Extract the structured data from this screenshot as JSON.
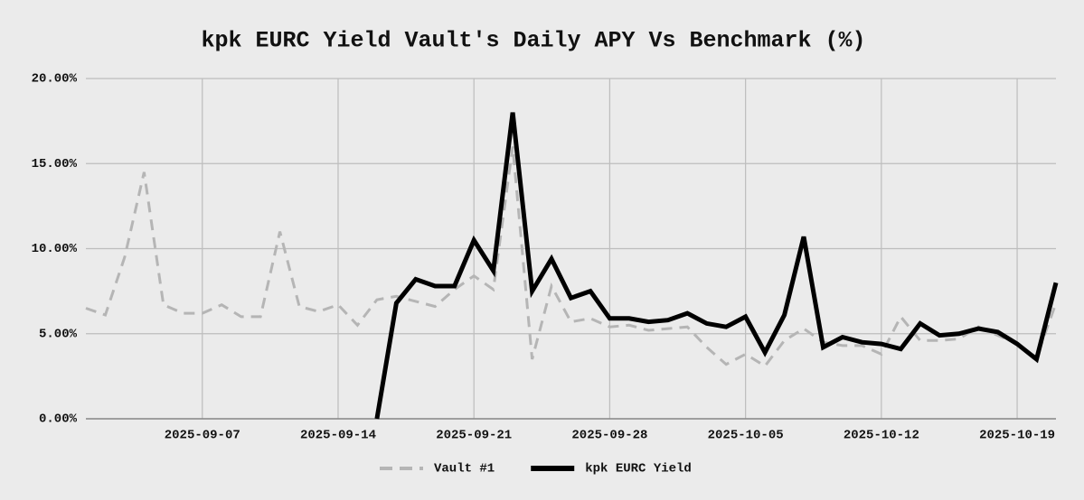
{
  "chart_data": {
    "type": "line",
    "title": "kpk EURC Yield Vault's Daily APY Vs Benchmark (%)",
    "x": [
      "2025-09-01",
      "2025-09-02",
      "2025-09-03",
      "2025-09-04",
      "2025-09-05",
      "2025-09-06",
      "2025-09-07",
      "2025-09-08",
      "2025-09-09",
      "2025-09-10",
      "2025-09-11",
      "2025-09-12",
      "2025-09-13",
      "2025-09-14",
      "2025-09-15",
      "2025-09-16",
      "2025-09-17",
      "2025-09-18",
      "2025-09-19",
      "2025-09-20",
      "2025-09-21",
      "2025-09-22",
      "2025-09-23",
      "2025-09-24",
      "2025-09-25",
      "2025-09-26",
      "2025-09-27",
      "2025-09-28",
      "2025-09-29",
      "2025-09-30",
      "2025-10-01",
      "2025-10-02",
      "2025-10-03",
      "2025-10-04",
      "2025-10-05",
      "2025-10-06",
      "2025-10-07",
      "2025-10-08",
      "2025-10-09",
      "2025-10-10",
      "2025-10-11",
      "2025-10-12",
      "2025-10-13",
      "2025-10-14",
      "2025-10-15",
      "2025-10-16",
      "2025-10-17",
      "2025-10-18",
      "2025-10-19",
      "2025-10-20",
      "2025-10-21"
    ],
    "series": [
      {
        "name": "Vault #1",
        "color": "#b5b5b5",
        "dashed": true,
        "values": [
          6.5,
          6.1,
          9.5,
          14.5,
          6.7,
          6.2,
          6.2,
          6.7,
          6.0,
          6.0,
          11.0,
          6.6,
          6.3,
          6.7,
          5.5,
          7.0,
          7.2,
          6.9,
          6.6,
          7.6,
          8.4,
          7.6,
          16.0,
          3.5,
          7.8,
          5.7,
          5.9,
          5.4,
          5.5,
          5.2,
          5.3,
          5.4,
          4.2,
          3.2,
          3.8,
          3.1,
          4.6,
          5.3,
          4.5,
          4.3,
          4.3,
          3.8,
          6.0,
          4.6,
          4.6,
          4.7,
          5.4,
          4.9,
          4.4,
          3.6,
          6.8
        ]
      },
      {
        "name": "kpk EURC Yield",
        "color": "#000000",
        "dashed": false,
        "values": [
          null,
          null,
          null,
          null,
          null,
          null,
          null,
          null,
          null,
          null,
          null,
          null,
          null,
          null,
          null,
          0,
          6.8,
          8.2,
          7.8,
          7.8,
          10.5,
          8.7,
          18.0,
          7.5,
          9.4,
          7.1,
          7.5,
          5.9,
          5.9,
          5.7,
          5.8,
          6.2,
          5.6,
          5.4,
          6.0,
          3.9,
          6.1,
          10.7,
          4.2,
          4.8,
          4.5,
          4.4,
          4.1,
          5.6,
          4.9,
          5.0,
          5.3,
          5.1,
          4.4,
          3.5,
          8.0
        ]
      }
    ],
    "xlim": [
      "2025-09-01",
      "2025-10-21"
    ],
    "xticks": [
      "2025-09-07",
      "2025-09-14",
      "2025-09-21",
      "2025-09-28",
      "2025-10-05",
      "2025-10-12",
      "2025-10-19"
    ],
    "ylim": [
      0,
      20
    ],
    "yticks": [
      {
        "value": 0,
        "label": "0.00%"
      },
      {
        "value": 5,
        "label": "5.00%"
      },
      {
        "value": 10,
        "label": "10.00%"
      },
      {
        "value": 15,
        "label": "15.00%"
      },
      {
        "value": 20,
        "label": "20.00%"
      }
    ],
    "grid": true,
    "legend": "bottom"
  }
}
